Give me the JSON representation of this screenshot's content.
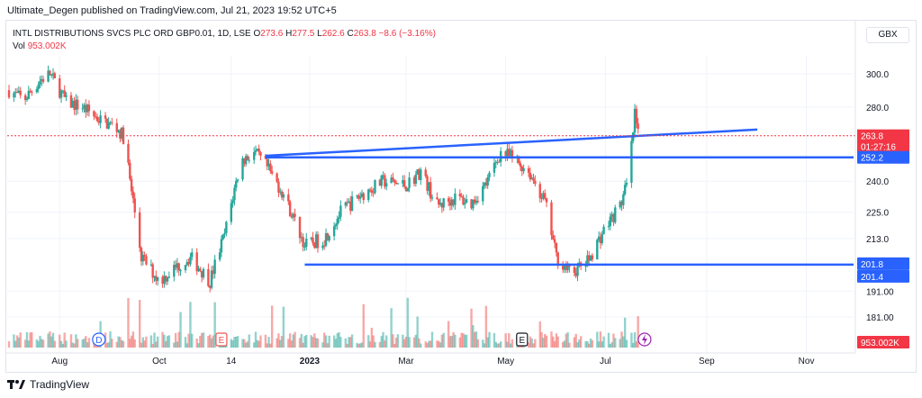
{
  "header": {
    "published": "Ultimate_Degen published on TradingView.com, Jul 21, 2023 19:52 UTC+5",
    "symbol": "INTL DISTRIBUTIONS SVCS PLC ORD GBP0.01, 1D, LSE",
    "o_label": "O",
    "o": "273.6",
    "h_label": "H",
    "h": "277.5",
    "l_label": "L",
    "l": "262.6",
    "c_label": "C",
    "c": "263.8",
    "change": "−8.6 (−3.16%)",
    "vol_label": "Vol",
    "vol": "953.002K",
    "currency": "GBX"
  },
  "footer": {
    "brand": "TradingView"
  },
  "colors": {
    "up": "#26a69a",
    "down": "#ef5350",
    "line": "#2962ff",
    "price_label": "#f23645",
    "grid": "#f0f3fa"
  },
  "chart_data": {
    "type": "candlestick",
    "title": "INTL DISTRIBUTIONS SVCS PLC ORD GBP0.01, 1D, LSE",
    "x_ticks": [
      "Aug",
      "Oct",
      "14",
      "2023",
      "Mar",
      "May",
      "Jul",
      "Sep",
      "Nov"
    ],
    "y_ticks": [
      "300.0",
      "280.0",
      "240.0",
      "225.0",
      "213.0",
      "191.00",
      "181.00"
    ],
    "y_scale": "log",
    "last_price": "263.8",
    "countdown": "01:27:16",
    "price_labels": [
      "252.2",
      "201.8",
      "201.4"
    ],
    "volume_label": "953.002K",
    "trendlines": [
      {
        "from": [
          "2022-12-05",
          253.0
        ],
        "to": [
          "2023-10-02",
          267.2
        ]
      },
      {
        "from": [
          "2022-12-05",
          252.2
        ],
        "to": [
          "2023-11-30",
          252.2
        ]
      },
      {
        "from": [
          "2022-12-29",
          201.8
        ],
        "to": [
          "2023-11-30",
          201.8
        ]
      }
    ],
    "events": [
      "D",
      "E",
      "E"
    ],
    "price_path": [
      [
        "2022-07-01",
        290
      ],
      [
        "2022-07-10",
        284
      ],
      [
        "2022-07-20",
        296
      ],
      [
        "2022-07-26",
        300
      ],
      [
        "2022-08-05",
        283
      ],
      [
        "2022-08-15",
        280
      ],
      [
        "2022-08-25",
        273
      ],
      [
        "2022-09-05",
        268
      ],
      [
        "2022-09-10",
        262
      ],
      [
        "2022-09-13",
        240
      ],
      [
        "2022-09-20",
        205
      ],
      [
        "2022-10-01",
        195
      ],
      [
        "2022-10-10",
        200
      ],
      [
        "2022-10-20",
        205
      ],
      [
        "2022-11-01",
        195
      ],
      [
        "2022-11-10",
        215
      ],
      [
        "2022-11-20",
        250
      ],
      [
        "2022-11-28",
        255
      ],
      [
        "2022-12-05",
        248
      ],
      [
        "2022-12-15",
        235
      ],
      [
        "2022-12-29",
        210
      ],
      [
        "2023-01-10",
        213
      ],
      [
        "2023-01-20",
        225
      ],
      [
        "2023-02-01",
        233
      ],
      [
        "2023-02-15",
        240
      ],
      [
        "2023-03-01",
        238
      ],
      [
        "2023-03-10",
        245
      ],
      [
        "2023-03-20",
        228
      ],
      [
        "2023-04-01",
        232
      ],
      [
        "2023-04-10",
        229
      ],
      [
        "2023-04-20",
        240
      ],
      [
        "2023-04-28",
        255
      ],
      [
        "2023-05-05",
        252
      ],
      [
        "2023-05-15",
        245
      ],
      [
        "2023-05-25",
        230
      ],
      [
        "2023-06-01",
        205
      ],
      [
        "2023-06-10",
        198
      ],
      [
        "2023-06-20",
        203
      ],
      [
        "2023-07-01",
        218
      ],
      [
        "2023-07-10",
        228
      ],
      [
        "2023-07-15",
        240
      ],
      [
        "2023-07-19",
        275
      ],
      [
        "2023-07-21",
        263.8
      ]
    ]
  }
}
